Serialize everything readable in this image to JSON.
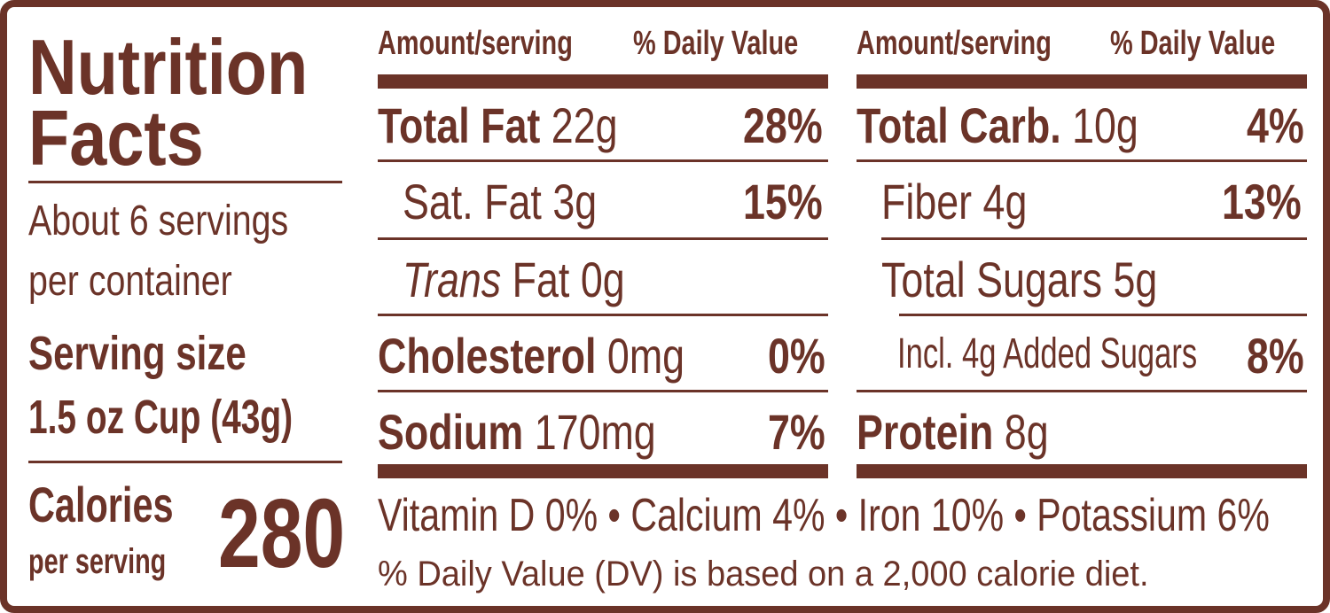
{
  "label": {
    "title_line1": "Nutrition",
    "title_line2": "Facts",
    "servings_line1": "About 6 servings",
    "servings_line2": "per container",
    "serving_size_label": "Serving size",
    "serving_size_value": "1.5 oz Cup (43g)",
    "calories_label": "Calories",
    "calories_sub": "per serving",
    "calories_value": "280",
    "color_brown": "#6b3328"
  },
  "left_column": {
    "header_amount": "Amount/serving",
    "header_dv": "% Daily Value",
    "rows": [
      {
        "name": "Total Fat",
        "amount": "22g",
        "dv": "28%"
      },
      {
        "name": "Sat. Fat",
        "amount": "3g",
        "dv": "15%"
      },
      {
        "name_italic": "Trans",
        "name": "Fat",
        "amount": "0g",
        "dv": ""
      },
      {
        "name": "Cholesterol",
        "amount": "0mg",
        "dv": "0%"
      },
      {
        "name": "Sodium",
        "amount": "170mg",
        "dv": "7%"
      }
    ]
  },
  "right_column": {
    "header_amount": "Amount/serving",
    "header_dv": "% Daily Value",
    "rows": [
      {
        "name": "Total Carb.",
        "amount": "10g",
        "dv": "4%"
      },
      {
        "name": "Fiber",
        "amount": "4g",
        "dv": "13%"
      },
      {
        "name": "Total Sugars",
        "amount": "5g",
        "dv": ""
      },
      {
        "name": "Incl. 4g Added Sugars",
        "amount": "",
        "dv": "8%"
      },
      {
        "name": "Protein",
        "amount": "8g",
        "dv": ""
      }
    ]
  },
  "footer": {
    "vitamins": "Vitamin D 0% • Calcium 4% • Iron 10% • Potassium 6%",
    "dv_note": "% Daily Value (DV) is based on a 2,000 calorie diet."
  }
}
